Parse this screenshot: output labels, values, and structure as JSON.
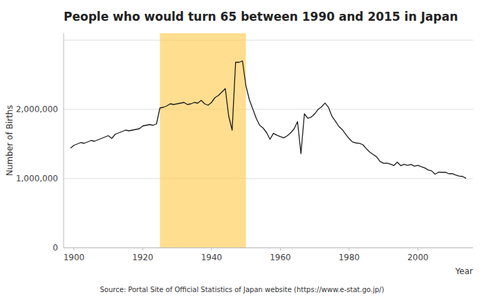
{
  "chart_data": {
    "type": "line",
    "title": "People who would turn 65 between 1990 and 2015 in Japan",
    "x_label": "Year",
    "y_label": "Number of Births",
    "source": "Source: Portal Site of Official Statistics of Japan website (https://www.e-stat.go.jp/)",
    "color": "#1a1a1a",
    "grid": true,
    "highlight": {
      "start": 1925,
      "end": 1950,
      "color": "#FFCC55"
    },
    "xlim": [
      1897,
      2016
    ],
    "ylim": [
      0,
      3100000
    ],
    "xticks": [
      1900,
      1920,
      1940,
      1960,
      1980,
      2000
    ],
    "yticks": [
      0,
      {
        "value": 1000000,
        "label": "1,000,000"
      },
      {
        "value": 2000000,
        "label": "2,000,000"
      },
      {
        "value": 3000000,
        "label": null
      }
    ],
    "x": [
      1899,
      1900,
      1901,
      1902,
      1903,
      1904,
      1905,
      1906,
      1907,
      1908,
      1909,
      1910,
      1911,
      1912,
      1913,
      1914,
      1915,
      1916,
      1917,
      1918,
      1919,
      1920,
      1921,
      1922,
      1923,
      1924,
      1925,
      1926,
      1927,
      1928,
      1929,
      1930,
      1931,
      1932,
      1933,
      1934,
      1935,
      1936,
      1937,
      1938,
      1939,
      1940,
      1941,
      1942,
      1943,
      1944,
      1945,
      1946,
      1947,
      1948,
      1949,
      1950,
      1951,
      1952,
      1953,
      1954,
      1955,
      1956,
      1957,
      1958,
      1959,
      1960,
      1961,
      1962,
      1963,
      1964,
      1965,
      1966,
      1967,
      1968,
      1969,
      1970,
      1971,
      1972,
      1973,
      1974,
      1975,
      1976,
      1977,
      1978,
      1979,
      1980,
      1981,
      1982,
      1983,
      1984,
      1985,
      1986,
      1987,
      1988,
      1989,
      1990,
      1991,
      1992,
      1993,
      1994,
      1995,
      1996,
      1997,
      1998,
      1999,
      2000,
      2001,
      2002,
      2003,
      2004,
      2005,
      2006,
      2007,
      2008,
      2009,
      2010,
      2011,
      2012,
      2013,
      2014
    ],
    "values": [
      1440000,
      1480000,
      1500000,
      1520000,
      1510000,
      1530000,
      1550000,
      1540000,
      1560000,
      1580000,
      1600000,
      1620000,
      1580000,
      1640000,
      1660000,
      1680000,
      1700000,
      1690000,
      1700000,
      1710000,
      1720000,
      1760000,
      1770000,
      1780000,
      1770000,
      1790000,
      2020000,
      2030000,
      2050000,
      2080000,
      2070000,
      2080000,
      2090000,
      2100000,
      2070000,
      2080000,
      2100000,
      2090000,
      2130000,
      2080000,
      2060000,
      2100000,
      2170000,
      2200000,
      2250000,
      2300000,
      1900000,
      1700000,
      2680000,
      2680000,
      2700000,
      2340000,
      2140000,
      2005000,
      1870000,
      1770000,
      1730000,
      1665000,
      1567000,
      1654000,
      1626000,
      1606000,
      1589000,
      1618000,
      1660000,
      1717000,
      1823000,
      1360000,
      1935000,
      1871000,
      1889000,
      1934000,
      2001000,
      2038000,
      2091000,
      2029000,
      1901000,
      1832000,
      1755000,
      1708000,
      1642000,
      1577000,
      1529000,
      1515000,
      1509000,
      1490000,
      1432000,
      1383000,
      1347000,
      1314000,
      1247000,
      1222000,
      1224000,
      1209000,
      1188000,
      1238000,
      1187000,
      1207000,
      1191000,
      1204000,
      1178000,
      1191000,
      1171000,
      1154000,
      1124000,
      1111000,
      1063000,
      1093000,
      1090000,
      1091000,
      1070000,
      1071000,
      1051000,
      1037000,
      1030000,
      1004000
    ]
  }
}
